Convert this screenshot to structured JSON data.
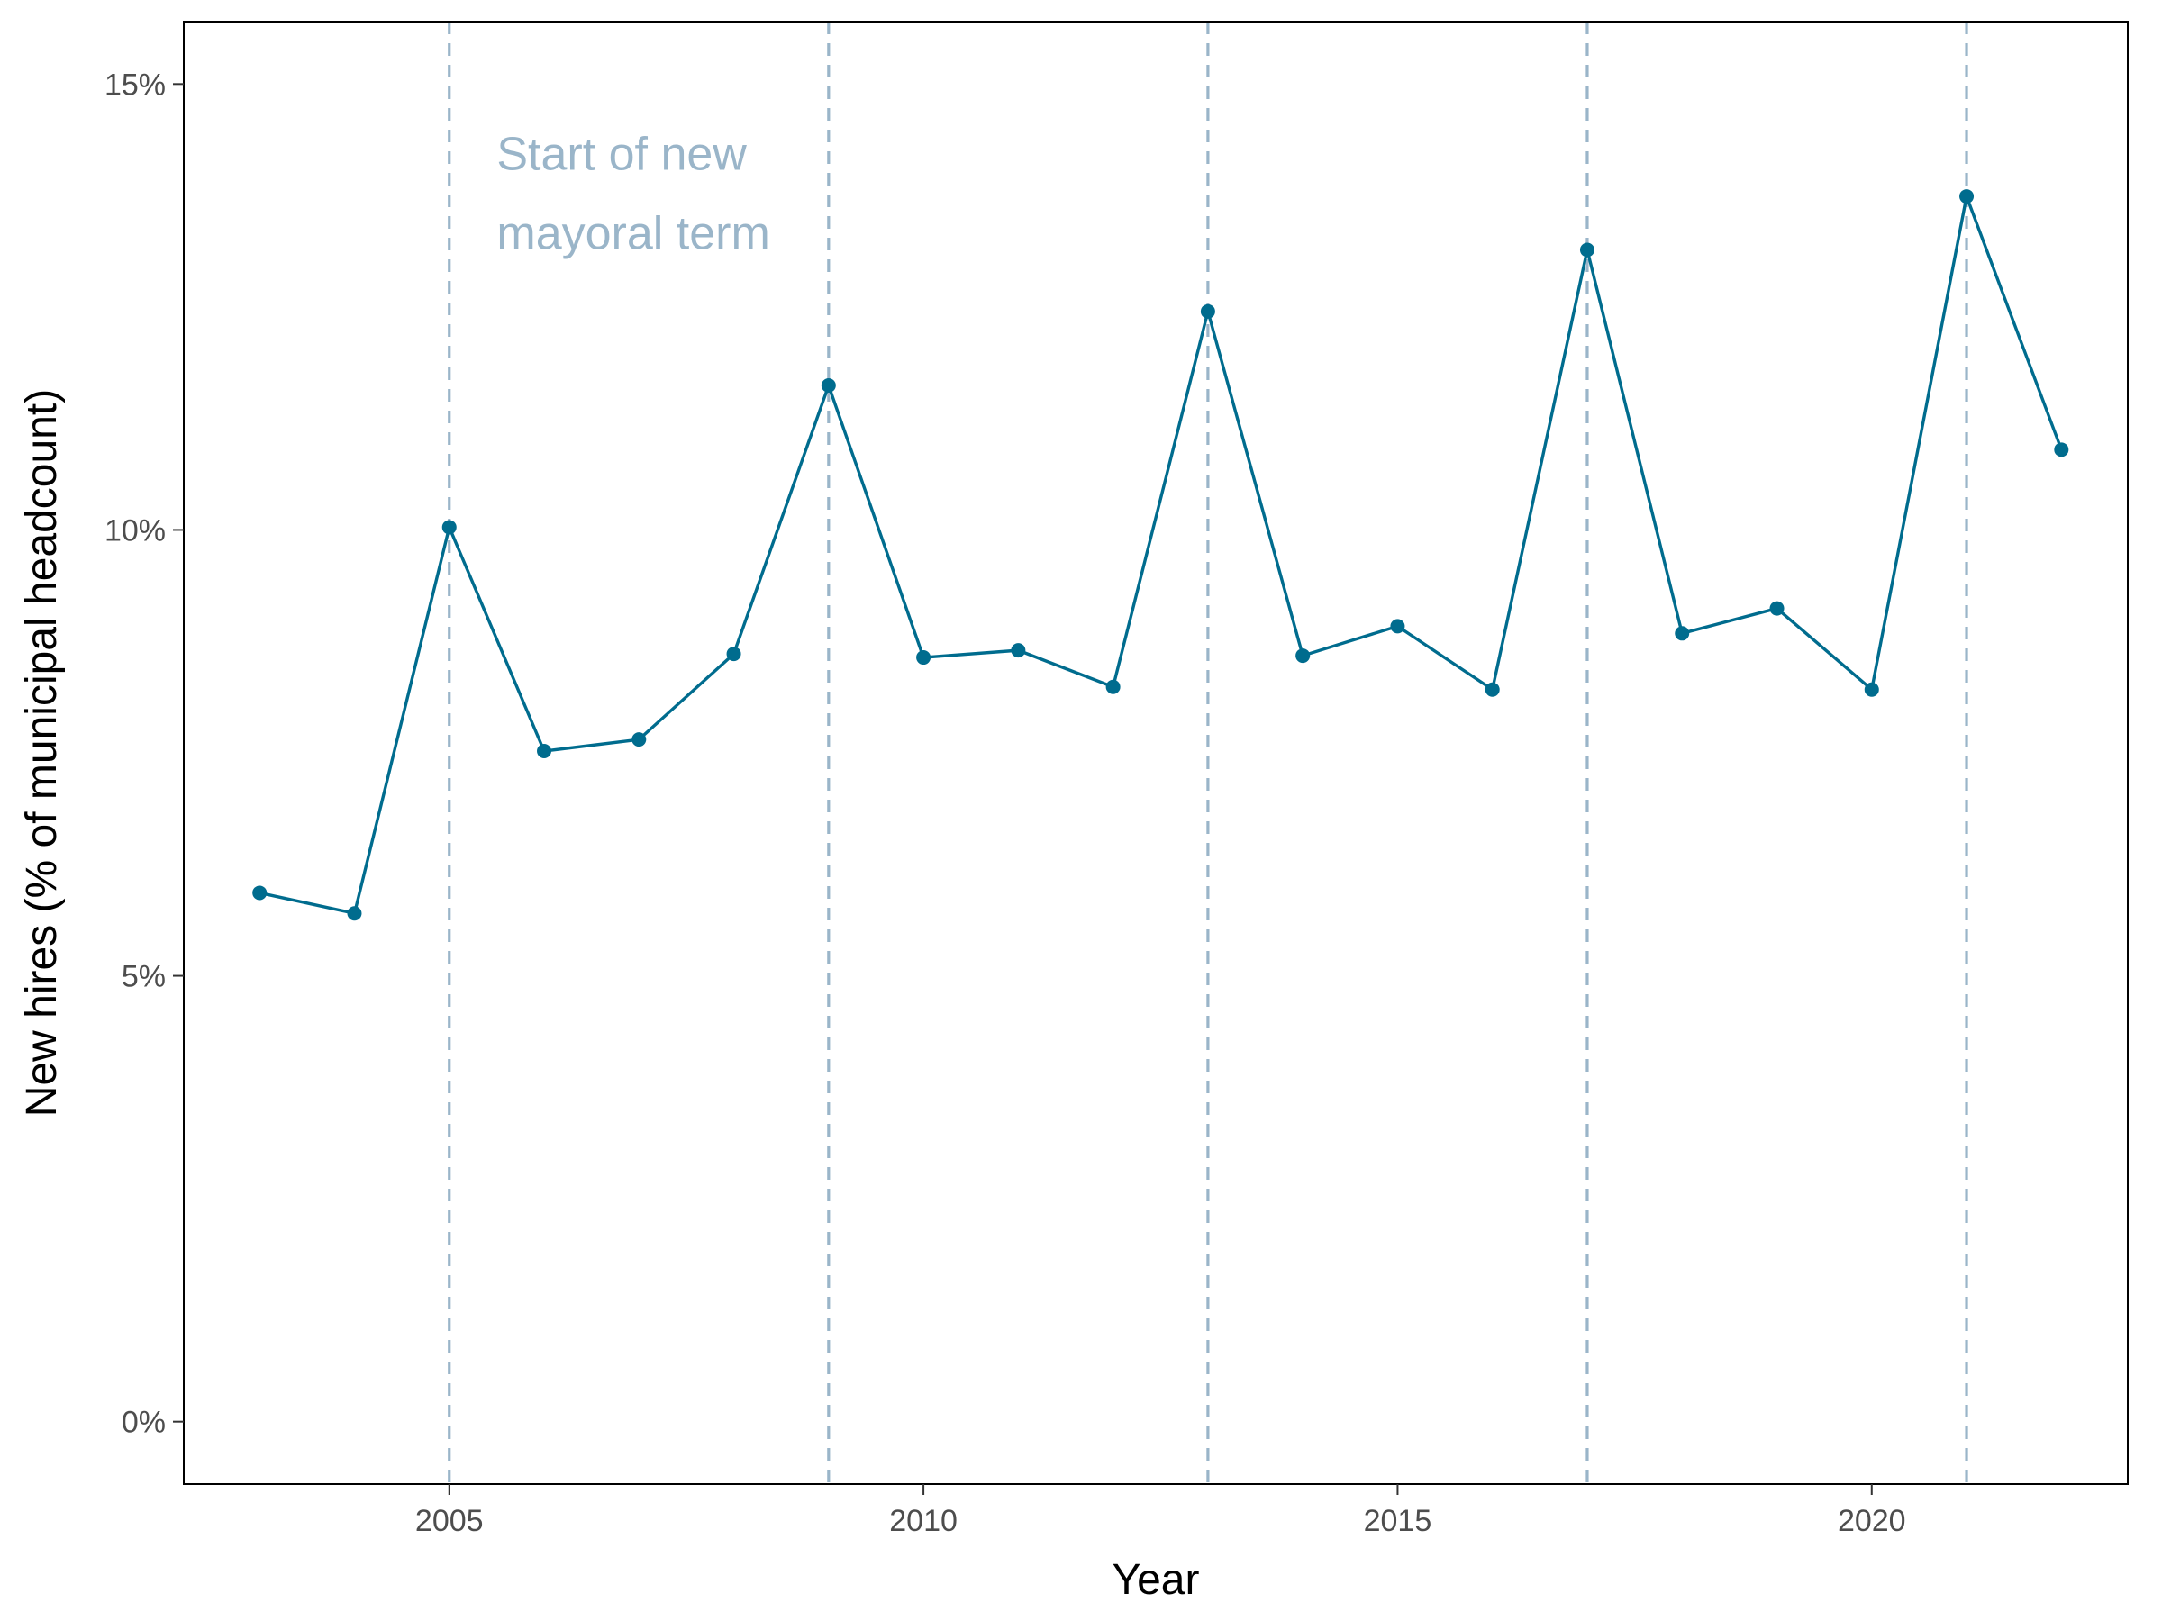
{
  "chart_data": {
    "type": "line",
    "xlabel": "Year",
    "ylabel": "New hires (% of municipal headcount)",
    "xlim": [
      2002.2,
      2022.7
    ],
    "ylim": [
      -0.7,
      15.7
    ],
    "x_ticks": [
      2005,
      2010,
      2015,
      2020
    ],
    "x_tick_labels": [
      "2005",
      "2010",
      "2015",
      "2020"
    ],
    "y_ticks": [
      0,
      5,
      10,
      15
    ],
    "y_tick_labels": [
      "0%",
      "5%",
      "10%",
      "15%"
    ],
    "grid": false,
    "series": [
      {
        "x": [
          2003,
          2004,
          2005,
          2006,
          2007,
          2008,
          2009,
          2010,
          2011,
          2012,
          2013,
          2014,
          2015,
          2016,
          2017,
          2018,
          2019,
          2020,
          2021,
          2022
        ],
        "values": [
          5.93,
          5.7,
          10.03,
          7.52,
          7.65,
          8.61,
          11.62,
          8.57,
          8.65,
          8.24,
          12.45,
          8.59,
          8.92,
          8.21,
          13.14,
          8.84,
          9.12,
          8.21,
          13.74,
          10.9
        ]
      }
    ],
    "reference_lines": {
      "x": [
        2005,
        2009,
        2013,
        2017,
        2021
      ],
      "style": "dashed"
    },
    "annotation": {
      "lines": [
        "Start of new",
        "mayoral term"
      ],
      "x": 2005.5,
      "y": 14.2
    },
    "colors": {
      "line": "#006c8e",
      "reference": "#9ab5c9",
      "annotation": "#9ab5c9"
    }
  }
}
